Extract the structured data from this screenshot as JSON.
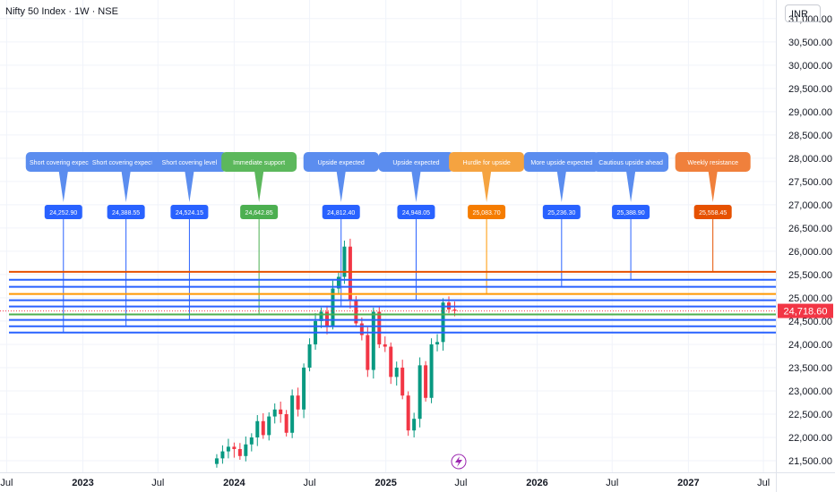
{
  "header": {
    "title": "Nifty 50 Index · 1W · NSE",
    "currency": "INR"
  },
  "chart_data": {
    "type": "candlestick",
    "y_axis": {
      "ticks": [
        21500,
        22000,
        22500,
        23000,
        23500,
        24000,
        24500,
        25000,
        25500,
        26000,
        26500,
        27000,
        27500,
        28000,
        28500,
        29000,
        29500,
        30000,
        30500,
        31000
      ],
      "tick_labels": [
        "21,500.00",
        "22,000.00",
        "22,500.00",
        "23,000.00",
        "23,500.00",
        "24,000.00",
        "24,500.00",
        "25,000.00",
        "25,500.00",
        "26,000.00",
        "26,500.00",
        "27,000.00",
        "27,500.00",
        "28,000.00",
        "28,500.00",
        "29,000.00",
        "29,500.00",
        "30,000.00",
        "30,500.00",
        "31,000.00"
      ],
      "range": [
        21250,
        31400
      ]
    },
    "x_axis": {
      "range": [
        "2022-06-15",
        "2027-07-31"
      ],
      "ticks": [
        {
          "date": "2022-07-01",
          "label": "Jul",
          "bold": false
        },
        {
          "date": "2023-01-01",
          "label": "2023",
          "bold": true
        },
        {
          "date": "2023-07-01",
          "label": "Jul",
          "bold": false
        },
        {
          "date": "2024-01-01",
          "label": "2024",
          "bold": true
        },
        {
          "date": "2024-07-01",
          "label": "Jul",
          "bold": false
        },
        {
          "date": "2025-01-01",
          "label": "2025",
          "bold": true
        },
        {
          "date": "2025-07-01",
          "label": "Jul",
          "bold": false
        },
        {
          "date": "2026-01-01",
          "label": "2026",
          "bold": true
        },
        {
          "date": "2026-07-01",
          "label": "Jul",
          "bold": false
        },
        {
          "date": "2027-01-01",
          "label": "2027",
          "bold": true
        },
        {
          "date": "2027-07-01",
          "label": "Jul",
          "bold": false
        }
      ]
    },
    "last_price": {
      "value": 24718.6,
      "label": "24,718.60"
    },
    "levels": [
      {
        "value": 24252.9,
        "label": "24,252.90",
        "note": "Short covering expected",
        "date": "2022-11-15",
        "color": "#2962ff",
        "bubble": "#5b8def"
      },
      {
        "value": 24388.55,
        "label": "24,388.55",
        "note": "Short covering expected",
        "date": "2023-04-15",
        "color": "#2962ff",
        "bubble": "#5b8def"
      },
      {
        "value": 24524.15,
        "label": "24,524.15",
        "note": "Short covering level",
        "date": "2023-09-15",
        "color": "#2962ff",
        "bubble": "#5b8def"
      },
      {
        "value": 24642.85,
        "label": "24,642.85",
        "note": "Immediate support",
        "date": "2024-03-01",
        "color": "#4caf50",
        "bubble": "#5cb85c"
      },
      {
        "value": 24812.4,
        "label": "24,812.40",
        "note": "Upside expected",
        "date": "2024-09-15",
        "color": "#2962ff",
        "bubble": "#5b8def"
      },
      {
        "value": 24948.05,
        "label": "24,948.05",
        "note": "Upside expected",
        "date": "2025-03-15",
        "color": "#2962ff",
        "bubble": "#5b8def"
      },
      {
        "value": 25083.7,
        "label": "25,083.70",
        "note": "Hurdle for upside",
        "date": "2025-09-01",
        "color": "#ff9800",
        "bubble": "#f5a340"
      },
      {
        "value": 25236.3,
        "label": "25,236.30",
        "note": "More upside expected",
        "date": "2026-03-01",
        "color": "#2962ff",
        "bubble": "#5b8def"
      },
      {
        "value": 25388.9,
        "label": "25,388.90",
        "note": "Cautious upside ahead",
        "date": "2026-08-15",
        "color": "#2962ff",
        "bubble": "#5b8def"
      },
      {
        "value": 25558.45,
        "label": "25,558.45",
        "note": "Weekly resistance",
        "date": "2027-03-01",
        "color": "#e65100",
        "bubble": "#f0803c"
      }
    ],
    "candles_weekly_close": [
      {
        "date": "2023-11-20",
        "close": 21550
      },
      {
        "date": "2023-12-04",
        "close": 21700
      },
      {
        "date": "2023-12-18",
        "close": 21800
      },
      {
        "date": "2024-01-01",
        "close": 21750
      },
      {
        "date": "2024-01-15",
        "close": 21600
      },
      {
        "date": "2024-01-29",
        "close": 21850
      },
      {
        "date": "2024-02-12",
        "close": 22000
      },
      {
        "date": "2024-02-26",
        "close": 22350
      },
      {
        "date": "2024-03-11",
        "close": 22050
      },
      {
        "date": "2024-03-25",
        "close": 22450
      },
      {
        "date": "2024-04-08",
        "close": 22600
      },
      {
        "date": "2024-04-22",
        "close": 22500
      },
      {
        "date": "2024-05-06",
        "close": 22100
      },
      {
        "date": "2024-05-20",
        "close": 22900
      },
      {
        "date": "2024-06-03",
        "close": 22600
      },
      {
        "date": "2024-06-17",
        "close": 23500
      },
      {
        "date": "2024-07-01",
        "close": 24000
      },
      {
        "date": "2024-07-15",
        "close": 24500
      },
      {
        "date": "2024-07-29",
        "close": 24700
      },
      {
        "date": "2024-08-12",
        "close": 24400
      },
      {
        "date": "2024-08-26",
        "close": 25200
      },
      {
        "date": "2024-09-09",
        "close": 25450
      },
      {
        "date": "2024-09-23",
        "close": 26100
      },
      {
        "date": "2024-10-07",
        "close": 24950
      },
      {
        "date": "2024-10-21",
        "close": 24450
      },
      {
        "date": "2024-11-04",
        "close": 24200
      },
      {
        "date": "2024-11-18",
        "close": 23450
      },
      {
        "date": "2024-12-02",
        "close": 24700
      },
      {
        "date": "2024-12-16",
        "close": 24000
      },
      {
        "date": "2024-12-30",
        "close": 23950
      },
      {
        "date": "2025-01-13",
        "close": 23300
      },
      {
        "date": "2025-01-27",
        "close": 23500
      },
      {
        "date": "2025-02-10",
        "close": 22900
      },
      {
        "date": "2025-02-24",
        "close": 22150
      },
      {
        "date": "2025-03-10",
        "close": 22400
      },
      {
        "date": "2025-03-24",
        "close": 23550
      },
      {
        "date": "2025-04-07",
        "close": 22850
      },
      {
        "date": "2025-04-21",
        "close": 24000
      },
      {
        "date": "2025-05-05",
        "close": 24050
      },
      {
        "date": "2025-05-19",
        "close": 24900
      },
      {
        "date": "2025-06-02",
        "close": 24750
      },
      {
        "date": "2025-06-16",
        "close": 24718.6
      }
    ]
  }
}
